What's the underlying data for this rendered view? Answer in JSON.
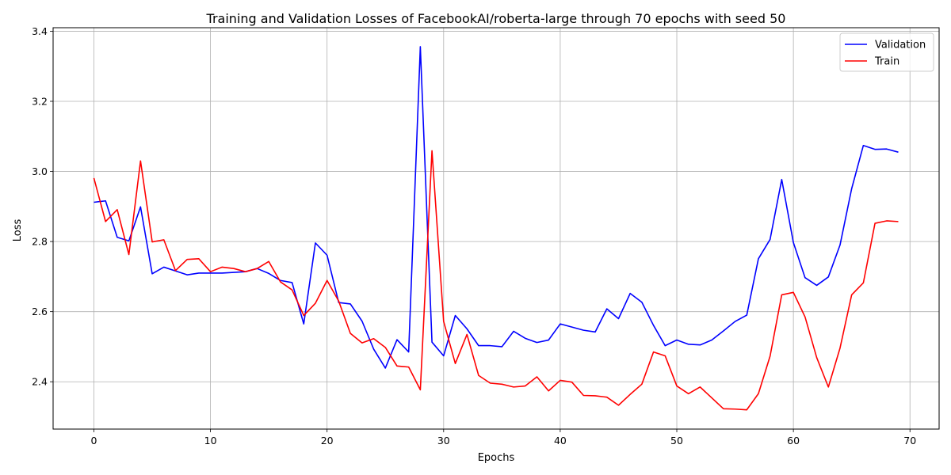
{
  "chart_data": {
    "type": "line",
    "title": "Training and Validation Losses of FacebookAI/roberta-large through 70 epochs with seed 50",
    "xlabel": "Epochs",
    "ylabel": "Loss",
    "xlim": [
      -3.5,
      72.5
    ],
    "ylim": [
      2.265,
      3.41
    ],
    "xticks": [
      0,
      10,
      20,
      30,
      40,
      50,
      60,
      70
    ],
    "yticks": [
      2.4,
      2.6,
      2.8,
      3.0,
      3.2,
      3.4
    ],
    "ytick_labels": [
      "2.4",
      "2.6",
      "2.8",
      "3.0",
      "3.2",
      "3.4"
    ],
    "grid": true,
    "legend_position": "top-right",
    "x": [
      0,
      1,
      2,
      3,
      4,
      5,
      6,
      7,
      8,
      9,
      10,
      11,
      12,
      13,
      14,
      15,
      16,
      17,
      18,
      19,
      20,
      21,
      22,
      23,
      24,
      25,
      26,
      27,
      28,
      29,
      30,
      31,
      32,
      33,
      34,
      35,
      36,
      37,
      38,
      39,
      40,
      41,
      42,
      43,
      44,
      45,
      46,
      47,
      48,
      49,
      50,
      51,
      52,
      53,
      54,
      55,
      56,
      57,
      58,
      59,
      60,
      61,
      62,
      63,
      64,
      65,
      66,
      67,
      68,
      69
    ],
    "series": [
      {
        "name": "Validation",
        "color": "#0000ff",
        "values": [
          2.912,
          2.916,
          2.812,
          2.802,
          2.899,
          2.708,
          2.727,
          2.716,
          2.705,
          2.71,
          2.71,
          2.71,
          2.712,
          2.714,
          2.723,
          2.709,
          2.689,
          2.683,
          2.565,
          2.796,
          2.761,
          2.626,
          2.622,
          2.573,
          2.493,
          2.439,
          2.52,
          2.485,
          3.356,
          2.513,
          2.474,
          2.589,
          2.551,
          2.503,
          2.503,
          2.5,
          2.544,
          2.524,
          2.512,
          2.519,
          2.565,
          2.556,
          2.547,
          2.542,
          2.608,
          2.58,
          2.652,
          2.627,
          2.561,
          2.503,
          2.519,
          2.507,
          2.505,
          2.519,
          2.545,
          2.572,
          2.59,
          2.751,
          2.806,
          2.977,
          2.797,
          2.697,
          2.675,
          2.699,
          2.79,
          2.951,
          3.074,
          3.063,
          3.064,
          3.055
        ]
      },
      {
        "name": "Train",
        "color": "#ff0000",
        "values": [
          2.981,
          2.857,
          2.891,
          2.763,
          3.03,
          2.799,
          2.805,
          2.717,
          2.749,
          2.751,
          2.714,
          2.727,
          2.723,
          2.714,
          2.723,
          2.743,
          2.685,
          2.662,
          2.589,
          2.624,
          2.689,
          2.63,
          2.538,
          2.511,
          2.523,
          2.498,
          2.445,
          2.442,
          2.377,
          3.059,
          2.572,
          2.452,
          2.535,
          2.418,
          2.396,
          2.393,
          2.385,
          2.388,
          2.414,
          2.374,
          2.404,
          2.399,
          2.361,
          2.36,
          2.356,
          2.333,
          2.364,
          2.393,
          2.485,
          2.474,
          2.388,
          2.366,
          2.385,
          2.354,
          2.323,
          2.322,
          2.32,
          2.366,
          2.473,
          2.648,
          2.655,
          2.585,
          2.469,
          2.385,
          2.496,
          2.648,
          2.682,
          2.852,
          2.859,
          2.857
        ]
      }
    ]
  }
}
